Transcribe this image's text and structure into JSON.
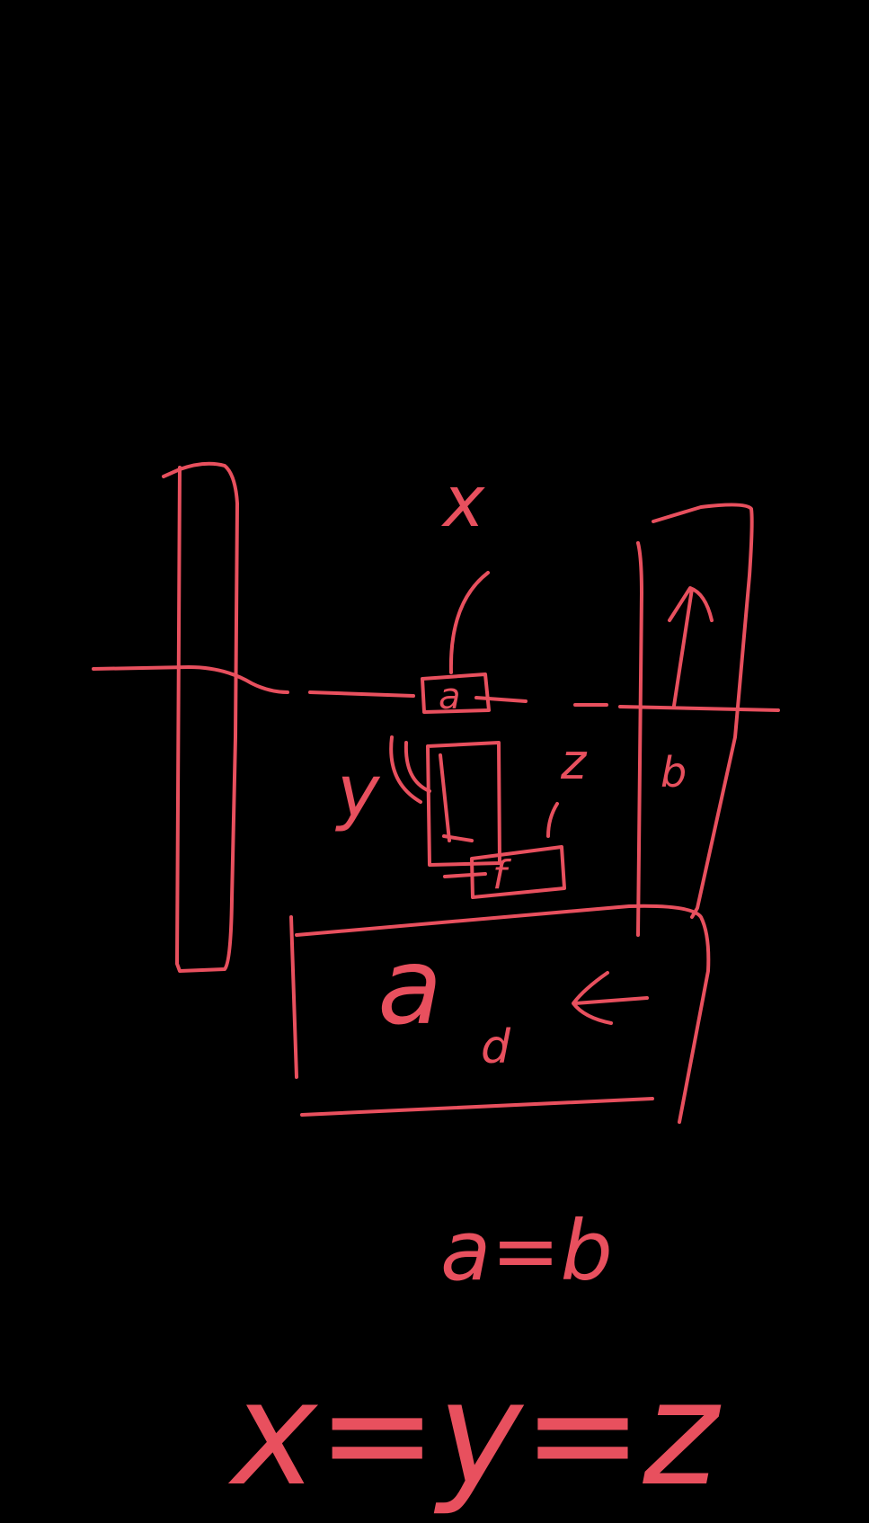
{
  "ink_color": "#e8505e",
  "background_color": "#000000",
  "labels": {
    "x_top": "x",
    "y_left": "y",
    "z_right": "z",
    "a_small": "a",
    "b_small": "b",
    "a_box": "a",
    "sub_box": "d",
    "f_box": "f"
  },
  "equations": {
    "eq1": "a=b",
    "eq2": "x=y=z"
  }
}
